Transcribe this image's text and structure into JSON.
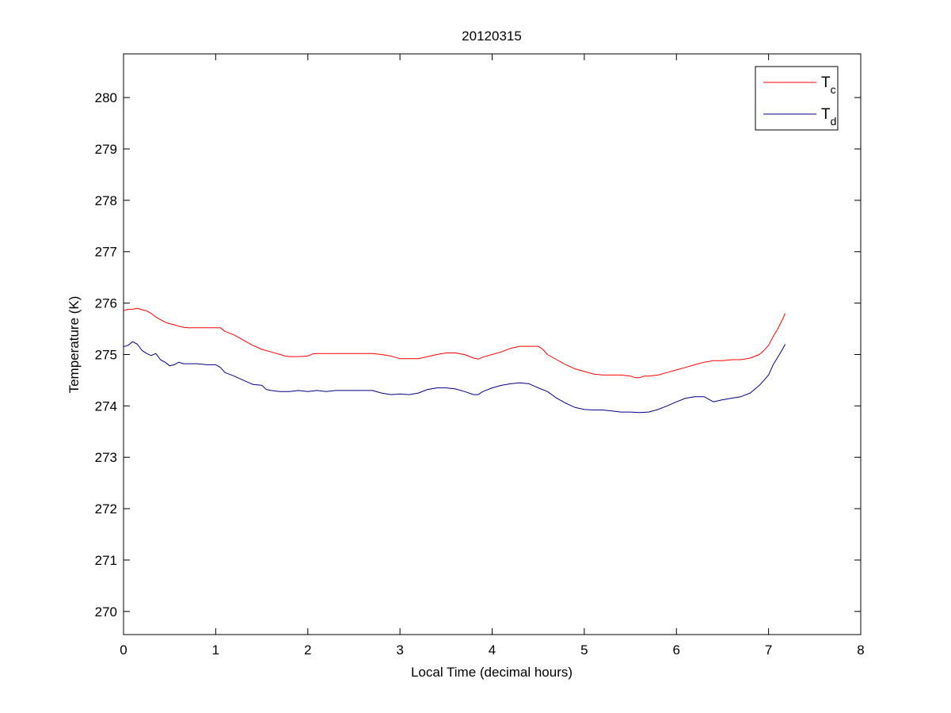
{
  "chart_data": {
    "type": "line",
    "title": "20120315",
    "xlabel": "Local Time (decimal hours)",
    "ylabel": "Temperature (K)",
    "xlim": [
      0,
      8
    ],
    "ylim": [
      269.55,
      280.85
    ],
    "xticks": [
      0,
      1,
      2,
      3,
      4,
      5,
      6,
      7,
      8
    ],
    "yticks": [
      270,
      271,
      272,
      273,
      274,
      275,
      276,
      277,
      278,
      279,
      280
    ],
    "grid": false,
    "legend_position": "top-right",
    "series": [
      {
        "name": "T_c",
        "legend_main": "T",
        "legend_sub": "c",
        "color": "#ff0000",
        "points": [
          [
            0.0,
            275.85
          ],
          [
            0.05,
            275.88
          ],
          [
            0.1,
            275.88
          ],
          [
            0.15,
            275.9
          ],
          [
            0.2,
            275.87
          ],
          [
            0.25,
            275.85
          ],
          [
            0.3,
            275.8
          ],
          [
            0.35,
            275.73
          ],
          [
            0.4,
            275.68
          ],
          [
            0.45,
            275.63
          ],
          [
            0.5,
            275.6
          ],
          [
            0.55,
            275.58
          ],
          [
            0.6,
            275.55
          ],
          [
            0.65,
            275.53
          ],
          [
            0.7,
            275.52
          ],
          [
            0.8,
            275.52
          ],
          [
            0.9,
            275.52
          ],
          [
            1.0,
            275.52
          ],
          [
            1.05,
            275.52
          ],
          [
            1.1,
            275.45
          ],
          [
            1.2,
            275.38
          ],
          [
            1.3,
            275.28
          ],
          [
            1.4,
            275.18
          ],
          [
            1.5,
            275.1
          ],
          [
            1.6,
            275.05
          ],
          [
            1.7,
            275.0
          ],
          [
            1.75,
            274.97
          ],
          [
            1.8,
            274.96
          ],
          [
            1.9,
            274.96
          ],
          [
            2.0,
            274.97
          ],
          [
            2.05,
            275.01
          ],
          [
            2.1,
            275.02
          ],
          [
            2.2,
            275.02
          ],
          [
            2.3,
            275.02
          ],
          [
            2.4,
            275.02
          ],
          [
            2.5,
            275.02
          ],
          [
            2.6,
            275.02
          ],
          [
            2.7,
            275.02
          ],
          [
            2.8,
            275.0
          ],
          [
            2.9,
            274.97
          ],
          [
            3.0,
            274.92
          ],
          [
            3.1,
            274.92
          ],
          [
            3.2,
            274.92
          ],
          [
            3.3,
            274.96
          ],
          [
            3.4,
            275.0
          ],
          [
            3.5,
            275.03
          ],
          [
            3.6,
            275.03
          ],
          [
            3.7,
            275.0
          ],
          [
            3.8,
            274.93
          ],
          [
            3.85,
            274.91
          ],
          [
            3.9,
            274.95
          ],
          [
            4.0,
            275.0
          ],
          [
            4.1,
            275.05
          ],
          [
            4.2,
            275.12
          ],
          [
            4.3,
            275.16
          ],
          [
            4.4,
            275.16
          ],
          [
            4.5,
            275.16
          ],
          [
            4.55,
            275.1
          ],
          [
            4.6,
            275.0
          ],
          [
            4.7,
            274.9
          ],
          [
            4.8,
            274.8
          ],
          [
            4.9,
            274.72
          ],
          [
            5.0,
            274.67
          ],
          [
            5.1,
            274.62
          ],
          [
            5.2,
            274.6
          ],
          [
            5.3,
            274.6
          ],
          [
            5.4,
            274.6
          ],
          [
            5.5,
            274.58
          ],
          [
            5.55,
            274.55
          ],
          [
            5.6,
            274.55
          ],
          [
            5.65,
            274.58
          ],
          [
            5.7,
            274.58
          ],
          [
            5.8,
            274.6
          ],
          [
            5.9,
            274.65
          ],
          [
            6.0,
            274.7
          ],
          [
            6.1,
            274.75
          ],
          [
            6.2,
            274.8
          ],
          [
            6.3,
            274.85
          ],
          [
            6.4,
            274.88
          ],
          [
            6.5,
            274.88
          ],
          [
            6.6,
            274.9
          ],
          [
            6.7,
            274.9
          ],
          [
            6.8,
            274.93
          ],
          [
            6.9,
            275.0
          ],
          [
            6.95,
            275.08
          ],
          [
            7.0,
            275.18
          ],
          [
            7.05,
            275.35
          ],
          [
            7.1,
            275.5
          ],
          [
            7.15,
            275.68
          ],
          [
            7.18,
            275.8
          ]
        ]
      },
      {
        "name": "T_d",
        "legend_main": "T",
        "legend_sub": "d",
        "color": "#00008b",
        "points": [
          [
            0.0,
            275.15
          ],
          [
            0.05,
            275.18
          ],
          [
            0.1,
            275.25
          ],
          [
            0.15,
            275.2
          ],
          [
            0.2,
            275.08
          ],
          [
            0.25,
            275.02
          ],
          [
            0.3,
            274.98
          ],
          [
            0.35,
            275.02
          ],
          [
            0.4,
            274.9
          ],
          [
            0.45,
            274.85
          ],
          [
            0.5,
            274.78
          ],
          [
            0.55,
            274.8
          ],
          [
            0.6,
            274.85
          ],
          [
            0.65,
            274.82
          ],
          [
            0.7,
            274.82
          ],
          [
            0.8,
            274.82
          ],
          [
            0.9,
            274.8
          ],
          [
            1.0,
            274.8
          ],
          [
            1.05,
            274.75
          ],
          [
            1.1,
            274.65
          ],
          [
            1.2,
            274.58
          ],
          [
            1.3,
            274.5
          ],
          [
            1.4,
            274.42
          ],
          [
            1.5,
            274.4
          ],
          [
            1.55,
            274.32
          ],
          [
            1.6,
            274.3
          ],
          [
            1.7,
            274.28
          ],
          [
            1.8,
            274.28
          ],
          [
            1.9,
            274.3
          ],
          [
            2.0,
            274.28
          ],
          [
            2.1,
            274.3
          ],
          [
            2.2,
            274.28
          ],
          [
            2.3,
            274.3
          ],
          [
            2.4,
            274.3
          ],
          [
            2.5,
            274.3
          ],
          [
            2.6,
            274.3
          ],
          [
            2.7,
            274.3
          ],
          [
            2.8,
            274.25
          ],
          [
            2.9,
            274.22
          ],
          [
            3.0,
            274.23
          ],
          [
            3.1,
            274.22
          ],
          [
            3.2,
            274.25
          ],
          [
            3.3,
            274.32
          ],
          [
            3.4,
            274.35
          ],
          [
            3.5,
            274.35
          ],
          [
            3.6,
            274.33
          ],
          [
            3.7,
            274.28
          ],
          [
            3.8,
            274.22
          ],
          [
            3.85,
            274.22
          ],
          [
            3.9,
            274.28
          ],
          [
            4.0,
            274.35
          ],
          [
            4.1,
            274.4
          ],
          [
            4.2,
            274.43
          ],
          [
            4.3,
            274.45
          ],
          [
            4.4,
            274.43
          ],
          [
            4.5,
            274.35
          ],
          [
            4.6,
            274.28
          ],
          [
            4.7,
            274.15
          ],
          [
            4.8,
            274.05
          ],
          [
            4.9,
            273.97
          ],
          [
            5.0,
            273.93
          ],
          [
            5.1,
            273.92
          ],
          [
            5.2,
            273.92
          ],
          [
            5.3,
            273.9
          ],
          [
            5.4,
            273.88
          ],
          [
            5.5,
            273.88
          ],
          [
            5.6,
            273.87
          ],
          [
            5.7,
            273.88
          ],
          [
            5.8,
            273.93
          ],
          [
            5.9,
            274.0
          ],
          [
            6.0,
            274.08
          ],
          [
            6.1,
            274.15
          ],
          [
            6.2,
            274.18
          ],
          [
            6.3,
            274.18
          ],
          [
            6.4,
            274.08
          ],
          [
            6.5,
            274.12
          ],
          [
            6.6,
            274.15
          ],
          [
            6.7,
            274.18
          ],
          [
            6.8,
            274.25
          ],
          [
            6.9,
            274.4
          ],
          [
            7.0,
            274.6
          ],
          [
            7.05,
            274.8
          ],
          [
            7.1,
            274.95
          ],
          [
            7.15,
            275.1
          ],
          [
            7.18,
            275.2
          ]
        ]
      }
    ]
  }
}
